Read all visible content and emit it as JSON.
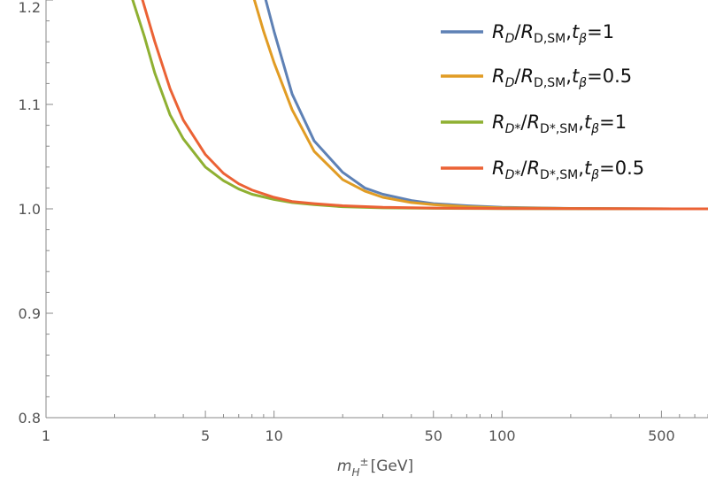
{
  "chart_data": {
    "type": "line",
    "x_scale": "log",
    "xlim": [
      1,
      800
    ],
    "ylim": [
      0.8,
      1.2
    ],
    "grid": false,
    "legend_position": "top-right",
    "x_ticks": [
      {
        "value": 1,
        "label": "1"
      },
      {
        "value": 5,
        "label": "5"
      },
      {
        "value": 10,
        "label": "10"
      },
      {
        "value": 50,
        "label": "50"
      },
      {
        "value": 100,
        "label": "100"
      },
      {
        "value": 500,
        "label": "500"
      }
    ],
    "y_ticks": [
      {
        "value": 0.8,
        "label": "0.8"
      },
      {
        "value": 0.9,
        "label": "0.9"
      },
      {
        "value": 1.0,
        "label": "1.0"
      },
      {
        "value": 1.1,
        "label": "1.1"
      },
      {
        "value": 1.2,
        "label": "1.2"
      }
    ],
    "xlabel": {
      "symbol": "m",
      "subscript": "H",
      "superscript": "±",
      "unit": "[GeV]"
    },
    "series": [
      {
        "legend": {
          "num": "R",
          "num_sub": "D",
          "den": "R",
          "den_sub": "D,SM",
          "param": "t",
          "param_sub": "β",
          "value": "=1"
        },
        "color": "#5e81b5",
        "points": [
          [
            9.2,
            1.2
          ],
          [
            10,
            1.17
          ],
          [
            12,
            1.11
          ],
          [
            15,
            1.065
          ],
          [
            20,
            1.035
          ],
          [
            25,
            1.02
          ],
          [
            30,
            1.014
          ],
          [
            40,
            1.008
          ],
          [
            50,
            1.005
          ],
          [
            70,
            1.003
          ],
          [
            100,
            1.0015
          ],
          [
            150,
            1.0008
          ],
          [
            200,
            1.0004
          ],
          [
            400,
            1.0001
          ],
          [
            800,
            1.0
          ]
        ]
      },
      {
        "legend": {
          "num": "R",
          "num_sub": "D",
          "den": "R",
          "den_sub": "D,SM",
          "param": "t",
          "param_sub": "β",
          "value": "=0.5"
        },
        "color": "#e19c24",
        "points": [
          [
            8.2,
            1.2
          ],
          [
            9,
            1.17
          ],
          [
            10,
            1.14
          ],
          [
            12,
            1.095
          ],
          [
            15,
            1.055
          ],
          [
            20,
            1.028
          ],
          [
            25,
            1.017
          ],
          [
            30,
            1.011
          ],
          [
            40,
            1.006
          ],
          [
            50,
            1.004
          ],
          [
            70,
            1.002
          ],
          [
            100,
            1.001
          ],
          [
            150,
            1.0006
          ],
          [
            200,
            1.0003
          ],
          [
            400,
            1.0001
          ],
          [
            800,
            1.0
          ]
        ]
      },
      {
        "legend": {
          "num": "R",
          "num_sub": "D*",
          "den": "R",
          "den_sub": "D*,SM",
          "param": "t",
          "param_sub": "β",
          "value": "=1"
        },
        "color": "#8fb032",
        "points": [
          [
            2.4,
            1.2
          ],
          [
            2.7,
            1.165
          ],
          [
            3,
            1.13
          ],
          [
            3.5,
            1.09
          ],
          [
            4,
            1.067
          ],
          [
            5,
            1.04
          ],
          [
            6,
            1.027
          ],
          [
            7,
            1.019
          ],
          [
            8,
            1.014
          ],
          [
            10,
            1.009
          ],
          [
            12,
            1.006
          ],
          [
            15,
            1.004
          ],
          [
            20,
            1.002
          ],
          [
            30,
            1.001
          ],
          [
            50,
            1.0005
          ],
          [
            100,
            1.0002
          ],
          [
            800,
            1.0
          ]
        ]
      },
      {
        "legend": {
          "num": "R",
          "num_sub": "D*",
          "den": "R",
          "den_sub": "D*,SM",
          "param": "t",
          "param_sub": "β",
          "value": "=0.5"
        },
        "color": "#eb6235",
        "points": [
          [
            2.65,
            1.2
          ],
          [
            3,
            1.16
          ],
          [
            3.5,
            1.115
          ],
          [
            4,
            1.085
          ],
          [
            5,
            1.052
          ],
          [
            6,
            1.034
          ],
          [
            7,
            1.024
          ],
          [
            8,
            1.018
          ],
          [
            10,
            1.011
          ],
          [
            12,
            1.007
          ],
          [
            15,
            1.005
          ],
          [
            20,
            1.003
          ],
          [
            30,
            1.0015
          ],
          [
            50,
            1.0007
          ],
          [
            100,
            1.0003
          ],
          [
            800,
            1.0
          ]
        ]
      }
    ]
  }
}
